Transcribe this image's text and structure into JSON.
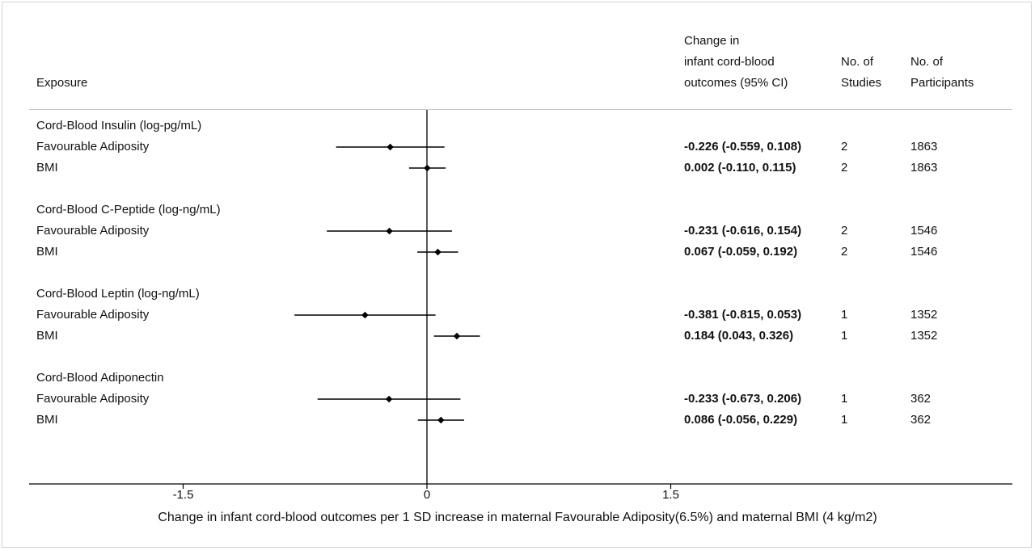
{
  "chart_data": {
    "type": "forest",
    "columns": {
      "exposure": "Exposure",
      "estimate": "Change in\ninfant cord-blood\noutcomes (95% CI)",
      "studies": "No. of\nStudies",
      "participants": "No. of\nParticipants"
    },
    "groups": [
      {
        "title": "Cord-Blood Insulin (log-pg/mL)",
        "rows": [
          {
            "label": "Favourable Adiposity",
            "est": -0.226,
            "lo": -0.559,
            "hi": 0.108,
            "ci_text": "-0.226 (-0.559, 0.108)",
            "studies": "2",
            "participants": "1863"
          },
          {
            "label": "BMI",
            "est": 0.002,
            "lo": -0.11,
            "hi": 0.115,
            "ci_text": "0.002 (-0.110, 0.115)",
            "studies": "2",
            "participants": "1863"
          }
        ]
      },
      {
        "title": "Cord-Blood C-Peptide (log-ng/mL)",
        "rows": [
          {
            "label": "Favourable Adiposity",
            "est": -0.231,
            "lo": -0.616,
            "hi": 0.154,
            "ci_text": "-0.231 (-0.616, 0.154)",
            "studies": "2",
            "participants": "1546"
          },
          {
            "label": "BMI",
            "est": 0.067,
            "lo": -0.059,
            "hi": 0.192,
            "ci_text": "0.067 (-0.059, 0.192)",
            "studies": "2",
            "participants": "1546"
          }
        ]
      },
      {
        "title": "Cord-Blood Leptin (log-ng/mL)",
        "rows": [
          {
            "label": "Favourable Adiposity",
            "est": -0.381,
            "lo": -0.815,
            "hi": 0.053,
            "ci_text": "-0.381 (-0.815, 0.053)",
            "studies": "1",
            "participants": "1352"
          },
          {
            "label": "BMI",
            "est": 0.184,
            "lo": 0.043,
            "hi": 0.326,
            "ci_text": "0.184 (0.043, 0.326)",
            "studies": "1",
            "participants": "1352"
          }
        ]
      },
      {
        "title": "Cord-Blood Adiponectin",
        "rows": [
          {
            "label": "Favourable Adiposity",
            "est": -0.233,
            "lo": -0.673,
            "hi": 0.206,
            "ci_text": "-0.233 (-0.673, 0.206)",
            "studies": "1",
            "participants": "362"
          },
          {
            "label": "BMI",
            "est": 0.086,
            "lo": -0.056,
            "hi": 0.229,
            "ci_text": "0.086 (-0.056, 0.229)",
            "studies": "1",
            "participants": "362"
          }
        ]
      }
    ],
    "xticks": [
      -1.5,
      0,
      1.5
    ],
    "xticklabels": [
      "-1.5",
      "0",
      "1.5"
    ],
    "xlim": [
      -2.46,
      3.6
    ],
    "reference_line": 0,
    "xlabel": "Change in infant cord-blood outcomes per 1 SD increase in maternal Favourable Adiposity(6.5%) and maternal BMI (4 kg/m2)"
  }
}
